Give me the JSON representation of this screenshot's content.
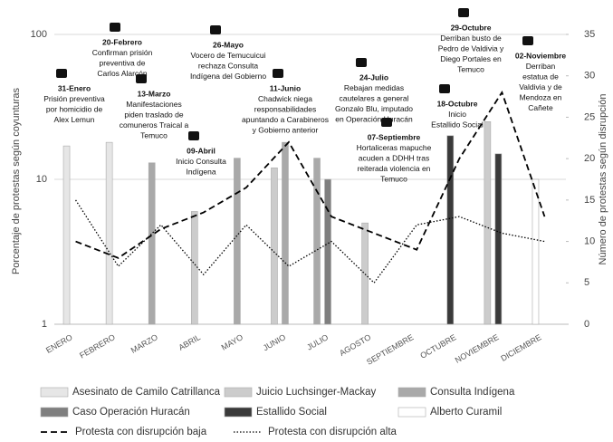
{
  "chart_data": {
    "type": "bar",
    "categories": [
      "ENERO",
      "FEBRERO",
      "MARZO",
      "ABRIL",
      "MAYO",
      "JUNIO",
      "JULIO",
      "AGOSTO",
      "SEPTIEMBRE",
      "OCTUBRE",
      "NOVIEMBRE",
      "DICIEMBRE"
    ],
    "ylabel": "Porcentaje de protestas según coyunturas",
    "y2label": "Número de protestas según disrupción",
    "yscale": "log",
    "ylim": [
      1,
      100
    ],
    "yticks": [
      1,
      10,
      100
    ],
    "y2lim": [
      0,
      35
    ],
    "y2ticks": [
      0,
      5,
      10,
      15,
      20,
      25,
      30,
      35
    ],
    "grid": true,
    "series": [
      {
        "name": "Asesinato de Camilo Catrillanca",
        "color": "#e6e6e6",
        "values": [
          17,
          18,
          null,
          null,
          null,
          null,
          null,
          null,
          null,
          null,
          null,
          null
        ]
      },
      {
        "name": "Juicio Luchsinger-Mackay",
        "color": "#cccccc",
        "values": [
          null,
          null,
          null,
          6,
          null,
          12,
          null,
          5,
          null,
          null,
          25,
          null
        ]
      },
      {
        "name": "Consulta Indígena",
        "color": "#a9a9a9",
        "values": [
          null,
          null,
          13,
          null,
          14,
          18,
          14,
          null,
          null,
          null,
          null,
          null
        ]
      },
      {
        "name": "Caso Operación Huracán",
        "color": "#7f7f7f",
        "values": [
          null,
          null,
          null,
          null,
          null,
          null,
          10,
          null,
          null,
          null,
          null,
          null
        ]
      },
      {
        "name": "Estallido Social",
        "color": "#3a3a3a",
        "values": [
          null,
          null,
          null,
          null,
          null,
          null,
          null,
          null,
          null,
          20,
          15,
          null
        ]
      },
      {
        "name": "Alberto Curamil",
        "color": "#ffffff",
        "values": [
          null,
          null,
          null,
          null,
          null,
          null,
          null,
          null,
          null,
          null,
          null,
          10
        ]
      },
      {
        "name": "Protesta con disrupción baja",
        "color": "#000000",
        "line": "dashed",
        "axis": "y2",
        "values": [
          10,
          8,
          11.5,
          13.5,
          16.5,
          22,
          13,
          11,
          9,
          20,
          28,
          13
        ]
      },
      {
        "name": "Protesta con disrupción alta",
        "color": "#000000",
        "line": "dotted",
        "axis": "y2",
        "values": [
          15,
          7,
          12,
          6,
          12,
          7,
          10,
          5,
          12,
          13,
          11,
          10
        ]
      }
    ],
    "annotations": [
      {
        "lines": [
          "31-Enero",
          "Prisión preventiva",
          "por homicidio de",
          "Alex Lemun"
        ]
      },
      {
        "lines": [
          "20-Febrero",
          "Confirman prisión",
          "preventiva de",
          "Carlos Alarcón"
        ]
      },
      {
        "lines": [
          "13-Marzo",
          "Manifestaciones",
          "piden traslado de",
          "comuneros Traical a",
          "Temuco"
        ]
      },
      {
        "lines": [
          "09-Abril",
          "Inicio Consulta",
          "Indígena"
        ]
      },
      {
        "lines": [
          "26-Mayo",
          "Vocero de Temucuicui",
          "rechaza Consulta",
          "Indígena del Gobierno"
        ]
      },
      {
        "lines": [
          "11-Junio",
          "Chadwick niega",
          "responsabilidades",
          "apuntando a Carabineros",
          "y Gobierno anterior"
        ]
      },
      {
        "lines": [
          "24-Julio",
          "Rebajan medidas",
          "cautelares a general",
          "Gonzalo Blu, imputado",
          "en Operación Huracán"
        ]
      },
      {
        "lines": [
          "07-Septiembre",
          "Hortaliceras mapuche",
          "acuden a DDHH tras",
          "reiterada violencia en",
          "Temuco"
        ]
      },
      {
        "lines": [
          "18-Octubre",
          "Inicio",
          "Estallido Social"
        ]
      },
      {
        "lines": [
          "29-Octubre",
          "Derriban busto de",
          "Pedro de Valdivia y",
          "Diego Portales en",
          "Temuco"
        ]
      },
      {
        "lines": [
          "02-Noviembre",
          "Derriban",
          "estatua de",
          "Valdivia y de",
          "Mendoza en",
          "Cañete"
        ]
      }
    ]
  }
}
